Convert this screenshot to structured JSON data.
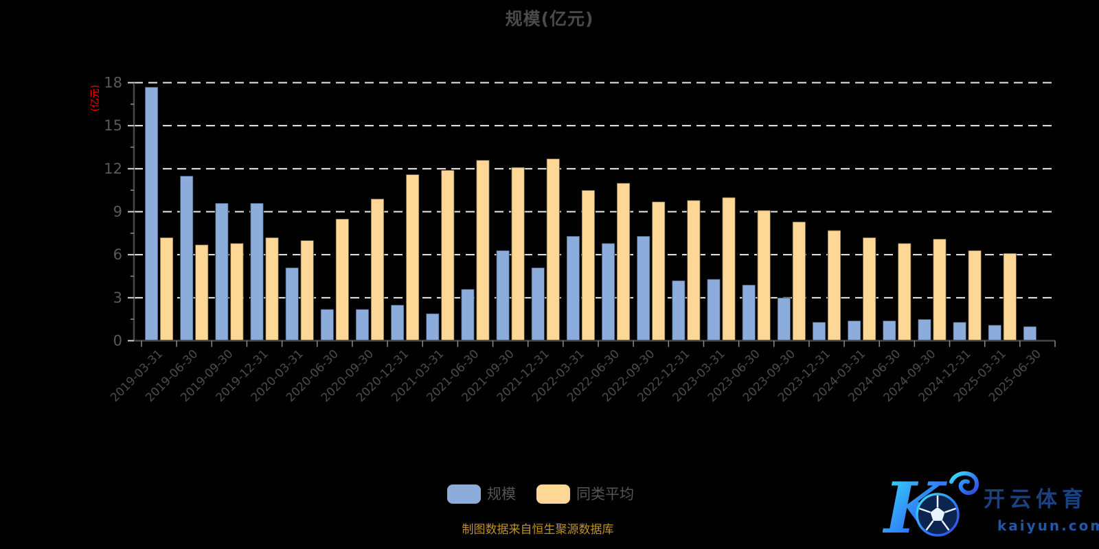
{
  "title": "规模(亿元)",
  "colors": {
    "background": "#000000",
    "bar_scale": "#8cacdc",
    "bar_peer": "#fdd795",
    "grid": "#ececec",
    "axis_line": "#474747",
    "x_tick": "#8c8c8c",
    "y_tick_major": "#d8d8d8",
    "y_tick_minor": "#909090",
    "y_label": "#5a5a5a",
    "x_label": "#4c4c4c",
    "y_axis_name": "#ff0000",
    "title": "#4a4a4a",
    "legend_text": "#555555",
    "source_text": "#bf9226",
    "logo_navy": "#1c4180",
    "logo_cyan": "#3ce8f8",
    "logo_blue": "#2f7ef5"
  },
  "chart_data": {
    "type": "bar",
    "title": "规模(亿元)",
    "ylabel": "(亿元)",
    "xlabel": "",
    "ylim": [
      0,
      18
    ],
    "yticks": [
      0,
      3,
      6,
      9,
      12,
      15,
      18
    ],
    "grid": "dashed-horizontal",
    "legend_position": "bottom",
    "categories": [
      "2019-03-31",
      "2019-06-30",
      "2019-09-30",
      "2019-12-31",
      "2020-03-31",
      "2020-06-30",
      "2020-09-30",
      "2020-12-31",
      "2021-03-31",
      "2021-06-30",
      "2021-09-30",
      "2021-12-31",
      "2022-03-31",
      "2022-06-30",
      "2022-09-30",
      "2022-12-31",
      "2023-03-31",
      "2023-06-30",
      "2023-09-30",
      "2023-12-31",
      "2024-03-31",
      "2024-06-30",
      "2024-09-30",
      "2024-12-31",
      "2025-03-31",
      "2025-06-30"
    ],
    "series": [
      {
        "name": "规模",
        "color": "#8cacdc",
        "values": [
          17.7,
          11.5,
          9.6,
          9.6,
          5.1,
          2.2,
          2.2,
          2.5,
          1.9,
          3.6,
          6.3,
          5.1,
          7.3,
          6.8,
          7.3,
          4.2,
          4.3,
          3.9,
          3.0,
          1.3,
          1.4,
          1.4,
          1.5,
          1.3,
          1.1,
          1.0
        ]
      },
      {
        "name": "同类平均",
        "color": "#fdd795",
        "values": [
          7.2,
          6.7,
          6.8,
          7.2,
          7.0,
          8.5,
          9.9,
          11.6,
          11.9,
          12.6,
          12.1,
          12.7,
          10.5,
          11.0,
          9.7,
          9.8,
          10.0,
          9.1,
          8.3,
          7.7,
          7.2,
          6.8,
          7.1,
          6.3,
          6.1,
          null
        ]
      }
    ]
  },
  "legend": {
    "items": [
      {
        "label": "规模"
      },
      {
        "label": "同类平均"
      }
    ]
  },
  "footer": {
    "source": "制图数据来自恒生聚源数据库"
  },
  "logo": {
    "brand": "开云体育",
    "domain": "kaiyun.com"
  }
}
